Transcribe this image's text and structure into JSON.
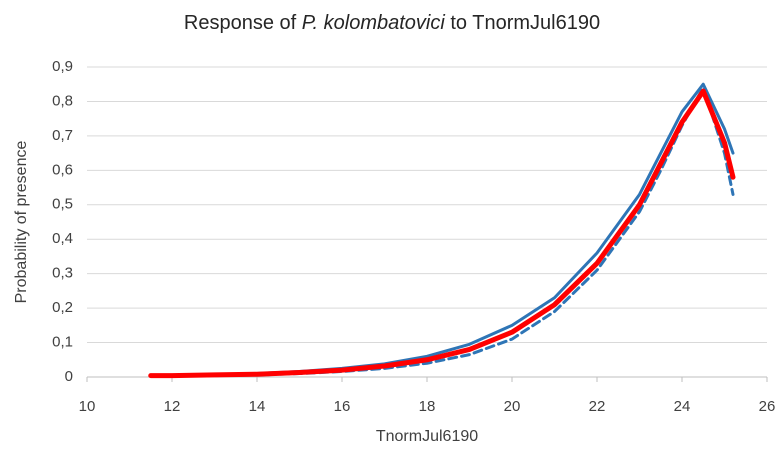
{
  "chart_data": {
    "type": "line",
    "title_parts": [
      {
        "text": "Response of "
      },
      {
        "text": "P. kolombatovici",
        "italic": true
      },
      {
        "text": " to TnormJul6190"
      }
    ],
    "x_label": "TnormJul6190",
    "y_label": "Probability of presence",
    "x": [
      11.5,
      12,
      13,
      14,
      15,
      16,
      17,
      18,
      19,
      20,
      21,
      22,
      23,
      23.5,
      24,
      24.5,
      25,
      25.2
    ],
    "series": [
      {
        "color": "#2e75b6",
        "width": 3,
        "dash": false,
        "values": [
          0.005,
          0.005,
          0.007,
          0.01,
          0.016,
          0.025,
          0.038,
          0.06,
          0.095,
          0.15,
          0.23,
          0.36,
          0.53,
          0.65,
          0.77,
          0.85,
          0.72,
          0.65
        ]
      },
      {
        "color": "#2e75b6",
        "width": 3,
        "dash": true,
        "values": [
          0.003,
          0.003,
          0.004,
          0.006,
          0.01,
          0.016,
          0.025,
          0.04,
          0.065,
          0.11,
          0.19,
          0.31,
          0.48,
          0.6,
          0.73,
          0.84,
          0.65,
          0.53
        ]
      },
      {
        "color": "#ff0000",
        "width": 5,
        "dash": false,
        "values": [
          0.004,
          0.004,
          0.006,
          0.008,
          0.013,
          0.02,
          0.032,
          0.05,
          0.08,
          0.13,
          0.21,
          0.33,
          0.5,
          0.62,
          0.74,
          0.83,
          0.68,
          0.58
        ]
      }
    ],
    "xlim": [
      10,
      26
    ],
    "xticks": [
      10,
      12,
      14,
      16,
      18,
      20,
      22,
      24,
      26
    ],
    "ylim": [
      0,
      0.9
    ],
    "yticks": [
      0,
      {
        "value": 0.1,
        "label": "0,1"
      },
      {
        "value": 0.2,
        "label": "0,2"
      },
      {
        "value": 0.3,
        "label": "0,3"
      },
      {
        "value": 0.4,
        "label": "0,4"
      },
      {
        "value": 0.5,
        "label": "0,5"
      },
      {
        "value": 0.6,
        "label": "0,6"
      },
      {
        "value": 0.7,
        "label": "0,7"
      },
      {
        "value": 0.8,
        "label": "0,8"
      },
      {
        "value": 0.9,
        "label": "0,9"
      }
    ],
    "grid": true
  }
}
